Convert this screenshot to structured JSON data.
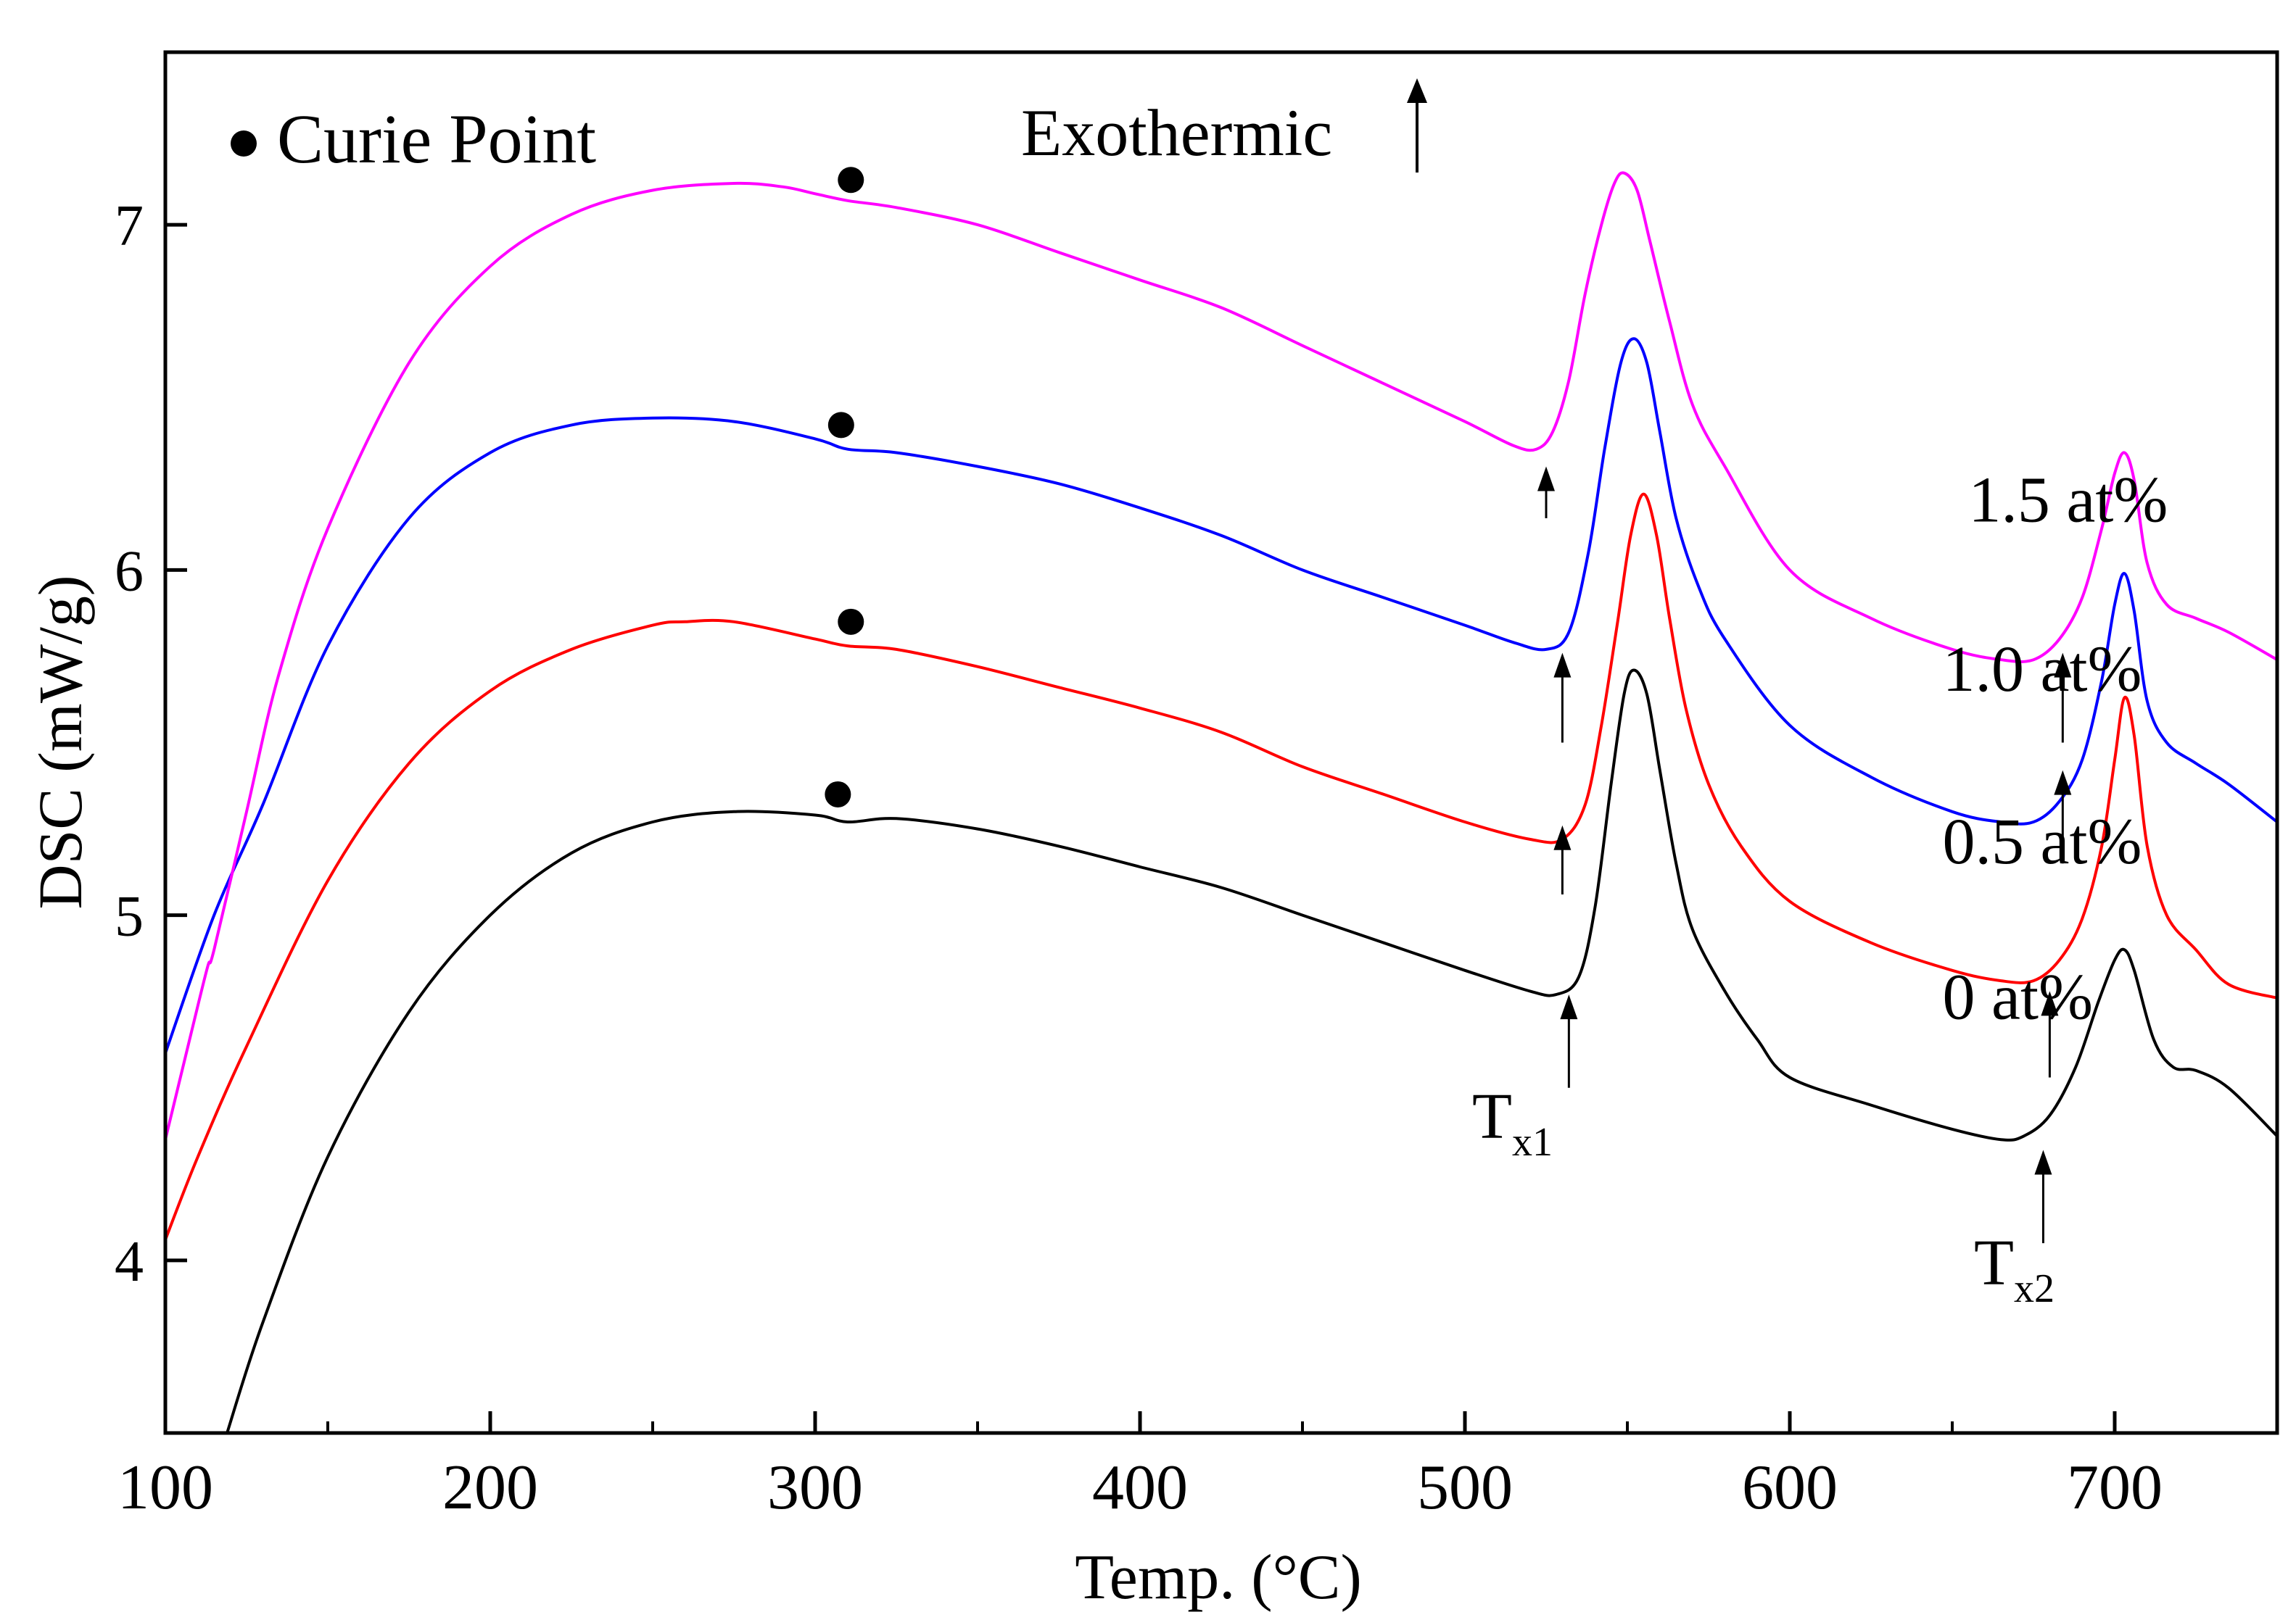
{
  "chart_data": {
    "type": "line",
    "title": "",
    "xlabel": "Temp. (°C)",
    "ylabel": "DSC (mW/g)",
    "xlim": [
      100,
      750
    ],
    "ylim": [
      3.5,
      7.5
    ],
    "x_ticks": [
      100,
      200,
      300,
      400,
      500,
      600,
      700
    ],
    "x_tick_labels": [
      "100",
      "200",
      "300",
      "400",
      "500",
      "600",
      "700"
    ],
    "y_ticks": [
      4,
      5,
      6,
      7
    ],
    "y_tick_labels": [
      "4",
      "5",
      "6",
      "7"
    ],
    "grid": false,
    "series": [
      {
        "name": "0 at%",
        "color": "#000000",
        "points": [
          [
            119,
            3.5
          ],
          [
            130,
            3.82
          ],
          [
            150,
            4.3
          ],
          [
            175,
            4.72
          ],
          [
            200,
            5.0
          ],
          [
            225,
            5.18
          ],
          [
            250,
            5.27
          ],
          [
            275,
            5.3
          ],
          [
            300,
            5.29
          ],
          [
            310,
            5.27
          ],
          [
            325,
            5.28
          ],
          [
            350,
            5.25
          ],
          [
            375,
            5.2
          ],
          [
            400,
            5.14
          ],
          [
            425,
            5.08
          ],
          [
            450,
            5.0
          ],
          [
            475,
            4.92
          ],
          [
            500,
            4.84
          ],
          [
            520,
            4.78
          ],
          [
            528,
            4.77
          ],
          [
            535,
            4.82
          ],
          [
            540,
            5.02
          ],
          [
            545,
            5.38
          ],
          [
            549,
            5.64
          ],
          [
            552,
            5.71
          ],
          [
            556,
            5.64
          ],
          [
            560,
            5.42
          ],
          [
            565,
            5.15
          ],
          [
            570,
            4.96
          ],
          [
            580,
            4.78
          ],
          [
            590,
            4.64
          ],
          [
            600,
            4.53
          ],
          [
            625,
            4.45
          ],
          [
            650,
            4.38
          ],
          [
            665,
            4.35
          ],
          [
            672,
            4.36
          ],
          [
            680,
            4.42
          ],
          [
            688,
            4.56
          ],
          [
            695,
            4.75
          ],
          [
            700,
            4.87
          ],
          [
            703,
            4.9
          ],
          [
            706,
            4.84
          ],
          [
            712,
            4.64
          ],
          [
            718,
            4.56
          ],
          [
            725,
            4.55
          ],
          [
            735,
            4.5
          ],
          [
            750,
            4.36
          ]
        ]
      },
      {
        "name": "0.5 at%",
        "color": "#ff0000",
        "points": [
          [
            100,
            4.06
          ],
          [
            110,
            4.3
          ],
          [
            125,
            4.62
          ],
          [
            150,
            5.1
          ],
          [
            175,
            5.44
          ],
          [
            200,
            5.65
          ],
          [
            225,
            5.77
          ],
          [
            250,
            5.84
          ],
          [
            260,
            5.85
          ],
          [
            275,
            5.85
          ],
          [
            300,
            5.8
          ],
          [
            310,
            5.78
          ],
          [
            325,
            5.77
          ],
          [
            350,
            5.72
          ],
          [
            375,
            5.66
          ],
          [
            400,
            5.6
          ],
          [
            425,
            5.53
          ],
          [
            450,
            5.43
          ],
          [
            475,
            5.35
          ],
          [
            500,
            5.27
          ],
          [
            520,
            5.22
          ],
          [
            530,
            5.22
          ],
          [
            537,
            5.32
          ],
          [
            542,
            5.55
          ],
          [
            547,
            5.85
          ],
          [
            551,
            6.1
          ],
          [
            555,
            6.22
          ],
          [
            559,
            6.1
          ],
          [
            563,
            5.86
          ],
          [
            568,
            5.6
          ],
          [
            575,
            5.38
          ],
          [
            585,
            5.2
          ],
          [
            600,
            5.04
          ],
          [
            625,
            4.92
          ],
          [
            650,
            4.84
          ],
          [
            665,
            4.81
          ],
          [
            675,
            4.81
          ],
          [
            683,
            4.87
          ],
          [
            690,
            4.99
          ],
          [
            696,
            5.2
          ],
          [
            700,
            5.45
          ],
          [
            703,
            5.63
          ],
          [
            706,
            5.52
          ],
          [
            710,
            5.2
          ],
          [
            716,
            5.0
          ],
          [
            725,
            4.9
          ],
          [
            735,
            4.8
          ],
          [
            750,
            4.76
          ]
        ]
      },
      {
        "name": "1.0 at%",
        "color": "#0000ff",
        "points": [
          [
            100,
            4.6
          ],
          [
            115,
            5.0
          ],
          [
            130,
            5.32
          ],
          [
            150,
            5.78
          ],
          [
            175,
            6.15
          ],
          [
            200,
            6.34
          ],
          [
            225,
            6.42
          ],
          [
            250,
            6.44
          ],
          [
            275,
            6.43
          ],
          [
            300,
            6.38
          ],
          [
            310,
            6.35
          ],
          [
            325,
            6.34
          ],
          [
            350,
            6.3
          ],
          [
            375,
            6.25
          ],
          [
            400,
            6.18
          ],
          [
            425,
            6.1
          ],
          [
            450,
            6.0
          ],
          [
            475,
            5.92
          ],
          [
            500,
            5.84
          ],
          [
            515,
            5.79
          ],
          [
            525,
            5.77
          ],
          [
            532,
            5.82
          ],
          [
            538,
            6.05
          ],
          [
            543,
            6.35
          ],
          [
            548,
            6.6
          ],
          [
            552,
            6.67
          ],
          [
            556,
            6.6
          ],
          [
            560,
            6.4
          ],
          [
            565,
            6.15
          ],
          [
            572,
            5.95
          ],
          [
            580,
            5.8
          ],
          [
            600,
            5.55
          ],
          [
            625,
            5.4
          ],
          [
            650,
            5.3
          ],
          [
            665,
            5.27
          ],
          [
            675,
            5.27
          ],
          [
            683,
            5.33
          ],
          [
            690,
            5.45
          ],
          [
            696,
            5.68
          ],
          [
            700,
            5.9
          ],
          [
            703,
            5.99
          ],
          [
            706,
            5.88
          ],
          [
            710,
            5.62
          ],
          [
            716,
            5.5
          ],
          [
            725,
            5.44
          ],
          [
            735,
            5.38
          ],
          [
            750,
            5.27
          ]
        ]
      },
      {
        "name": "1.5 at%",
        "color": "#ff00ff",
        "points": [
          [
            100,
            4.35
          ],
          [
            108,
            4.66
          ],
          [
            113,
            4.85
          ],
          [
            115,
            4.9
          ],
          [
            125,
            5.3
          ],
          [
            135,
            5.7
          ],
          [
            150,
            6.12
          ],
          [
            175,
            6.6
          ],
          [
            200,
            6.88
          ],
          [
            225,
            7.03
          ],
          [
            250,
            7.1
          ],
          [
            275,
            7.12
          ],
          [
            290,
            7.11
          ],
          [
            300,
            7.09
          ],
          [
            310,
            7.07
          ],
          [
            325,
            7.05
          ],
          [
            350,
            7.0
          ],
          [
            375,
            6.92
          ],
          [
            400,
            6.84
          ],
          [
            425,
            6.76
          ],
          [
            450,
            6.65
          ],
          [
            475,
            6.54
          ],
          [
            500,
            6.43
          ],
          [
            515,
            6.36
          ],
          [
            522,
            6.35
          ],
          [
            527,
            6.4
          ],
          [
            532,
            6.55
          ],
          [
            537,
            6.8
          ],
          [
            542,
            7.0
          ],
          [
            546,
            7.12
          ],
          [
            549,
            7.15
          ],
          [
            553,
            7.1
          ],
          [
            557,
            6.95
          ],
          [
            563,
            6.72
          ],
          [
            570,
            6.48
          ],
          [
            580,
            6.3
          ],
          [
            600,
            6.0
          ],
          [
            625,
            5.86
          ],
          [
            650,
            5.77
          ],
          [
            665,
            5.74
          ],
          [
            675,
            5.74
          ],
          [
            683,
            5.8
          ],
          [
            690,
            5.92
          ],
          [
            696,
            6.12
          ],
          [
            700,
            6.28
          ],
          [
            703,
            6.34
          ],
          [
            706,
            6.26
          ],
          [
            710,
            6.02
          ],
          [
            716,
            5.9
          ],
          [
            725,
            5.86
          ],
          [
            735,
            5.82
          ],
          [
            750,
            5.74
          ]
        ]
      }
    ],
    "curie_points": [
      [
        307,
        5.35
      ],
      [
        311,
        5.85
      ],
      [
        308,
        6.42
      ],
      [
        311,
        7.13
      ]
    ],
    "legend": {
      "marker": "filled-circle",
      "label": "Curie Point",
      "position": "top-left"
    },
    "annotations": {
      "exothermic": "Exothermic",
      "series_labels": [
        {
          "text": "1.5 at%",
          "x": 655,
          "y": 6.14
        },
        {
          "text": "1.0 at%",
          "x": 647,
          "y": 5.65
        },
        {
          "text": "0.5 at%",
          "x": 647,
          "y": 5.15
        },
        {
          "text": "0 at%",
          "x": 647,
          "y": 4.7
        }
      ],
      "tx1_label": {
        "main": "T",
        "sub": "x1"
      },
      "tx2_label": {
        "main": "T",
        "sub": "x2"
      },
      "tx1_arrows": [
        [
          532,
          4.5,
          4.77
        ],
        [
          530,
          5.06,
          5.26
        ],
        [
          530,
          5.5,
          5.76
        ],
        [
          525,
          6.15,
          6.3
        ]
      ],
      "tx2_arrows": [
        [
          678,
          4.05,
          4.32
        ],
        [
          680,
          4.53,
          4.78
        ],
        [
          684,
          5.15,
          5.42
        ],
        [
          684,
          5.5,
          5.76
        ]
      ]
    }
  }
}
